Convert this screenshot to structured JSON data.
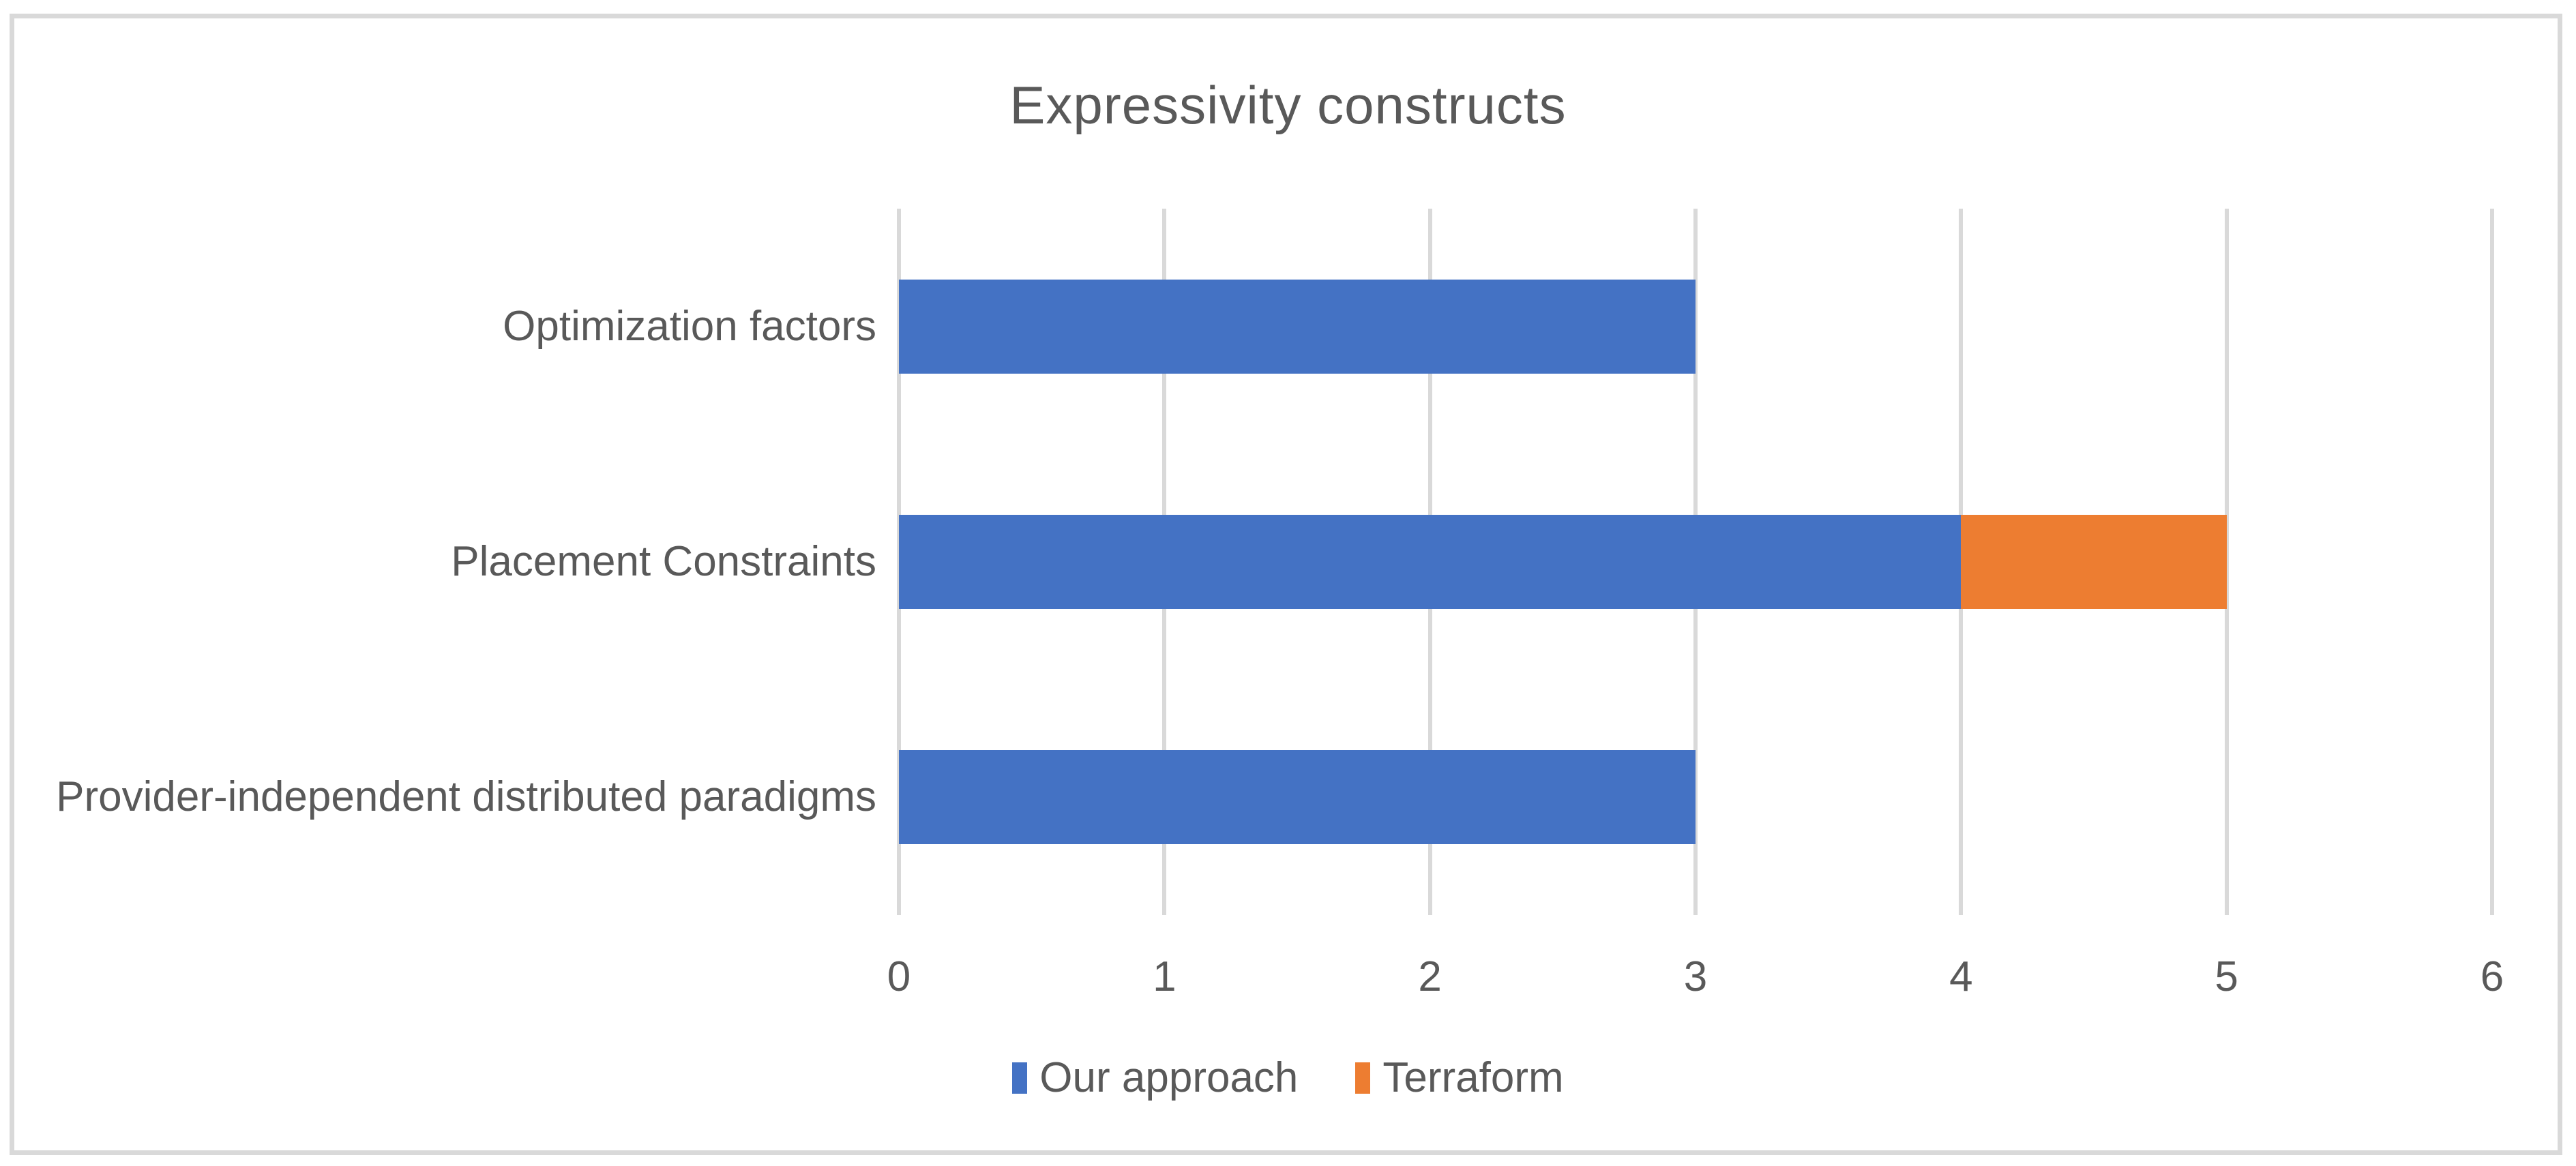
{
  "chart_data": {
    "type": "bar",
    "orientation": "horizontal",
    "stacked": true,
    "title": "Expressivity constructs",
    "categories": [
      "Optimization factors",
      "Placement Constraints",
      "Provider-independent distributed paradigms"
    ],
    "series": [
      {
        "name": "Our approach",
        "color": "#4472C4",
        "values": [
          3,
          4,
          3
        ]
      },
      {
        "name": "Terraform",
        "color": "#ED7D31",
        "values": [
          0,
          1,
          0
        ]
      }
    ],
    "xlim": [
      0,
      6
    ],
    "xticks": [
      0,
      1,
      2,
      3,
      4,
      5,
      6
    ],
    "grid": true,
    "legend_position": "bottom"
  },
  "colors": {
    "gridline": "#D9D9D9",
    "chart_border": "#D9D9D9",
    "text": "#595959",
    "background": "#FFFFFF"
  }
}
